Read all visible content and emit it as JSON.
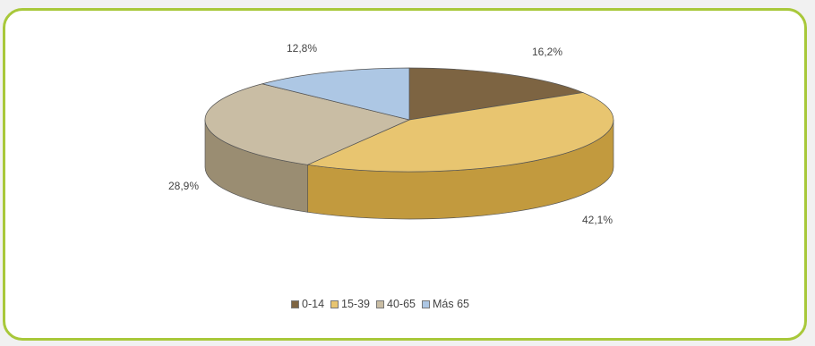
{
  "chart_data": {
    "type": "pie",
    "style": "3d",
    "slices": [
      {
        "label": "0-14",
        "value": 16.2,
        "display": "16,2%",
        "color": "#7d6442",
        "side": "#5c482d"
      },
      {
        "label": "15-39",
        "value": 42.1,
        "display": "42,1%",
        "color": "#e8c570",
        "side": "#c29a3e"
      },
      {
        "label": "40-65",
        "value": 28.9,
        "display": "28,9%",
        "color": "#c9bda4",
        "side": "#9a8d72"
      },
      {
        "label": "Más 65",
        "value": 12.8,
        "display": "12,8%",
        "color": "#adc7e4",
        "side": "#7d98b8"
      }
    ],
    "legend": [
      "0-14",
      "15-39",
      "40-65",
      "Más 65"
    ],
    "legend_position": "bottom"
  }
}
